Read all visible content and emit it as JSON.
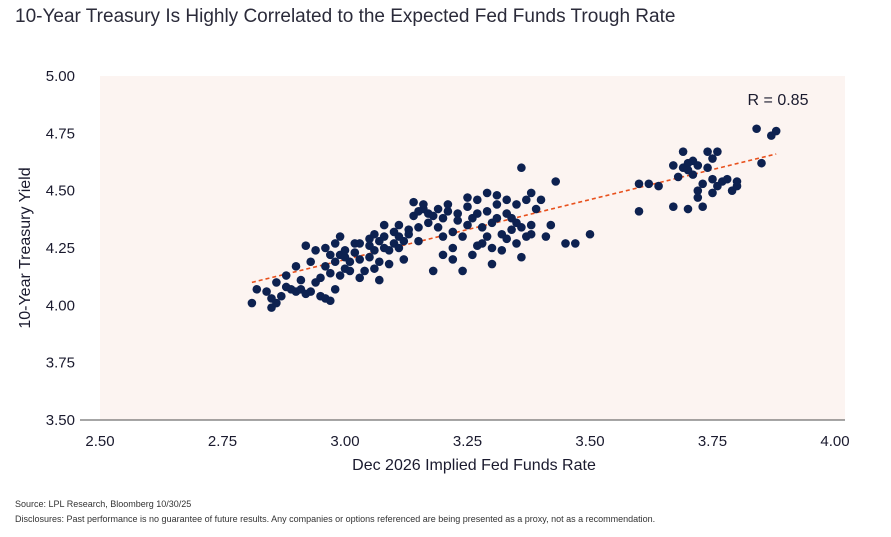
{
  "title": "10-Year Treasury Is Highly Correlated to the Expected Fed Funds Trough Rate",
  "source": "Source: LPL Research, Bloomberg 10/30/25",
  "disclosure": "Disclosures: Past performance is no guarantee of future results. Any companies or options referenced are being presented as a proxy, not as a recommendation.",
  "colors": {
    "point": "#0d2150",
    "trend": "#e8501c",
    "plot_bg": "#fcf4f1",
    "axis": "#4d4d4d"
  },
  "chart_data": {
    "type": "scatter",
    "xlabel": "Dec 2026 Implied Fed Funds Rate",
    "ylabel": "10-Year Treasury Yield",
    "xlim": [
      2.5,
      4.0
    ],
    "ylim": [
      3.5,
      5.0
    ],
    "x_ticks": [
      "2.50",
      "2.75",
      "3.00",
      "3.25",
      "3.50",
      "3.75",
      "4.00"
    ],
    "y_ticks": [
      "3.50",
      "3.75",
      "4.00",
      "4.25",
      "4.50",
      "4.75",
      "5.00"
    ],
    "annotation": "R = 0.85",
    "trendline": {
      "x": [
        2.81,
        3.88
      ],
      "y": [
        4.1,
        4.66
      ]
    },
    "points": [
      [
        2.81,
        4.01
      ],
      [
        2.82,
        4.07
      ],
      [
        2.84,
        4.06
      ],
      [
        2.85,
        3.99
      ],
      [
        2.85,
        4.03
      ],
      [
        2.86,
        4.01
      ],
      [
        2.86,
        4.1
      ],
      [
        2.87,
        4.04
      ],
      [
        2.88,
        4.08
      ],
      [
        2.89,
        4.07
      ],
      [
        2.9,
        4.06
      ],
      [
        2.91,
        4.07
      ],
      [
        2.91,
        4.11
      ],
      [
        2.92,
        4.05
      ],
      [
        2.92,
        4.26
      ],
      [
        2.93,
        4.19
      ],
      [
        2.94,
        4.1
      ],
      [
        2.94,
        4.24
      ],
      [
        2.95,
        4.04
      ],
      [
        2.95,
        4.12
      ],
      [
        2.96,
        4.03
      ],
      [
        2.96,
        4.17
      ],
      [
        2.96,
        4.25
      ],
      [
        2.97,
        4.02
      ],
      [
        2.97,
        4.14
      ],
      [
        2.98,
        4.07
      ],
      [
        2.98,
        4.19
      ],
      [
        2.98,
        4.27
      ],
      [
        2.99,
        4.13
      ],
      [
        2.99,
        4.22
      ],
      [
        2.99,
        4.3
      ],
      [
        3.0,
        4.16
      ],
      [
        3.0,
        4.24
      ],
      [
        3.01,
        4.15
      ],
      [
        3.01,
        4.19
      ],
      [
        3.02,
        4.23
      ],
      [
        3.02,
        4.27
      ],
      [
        3.03,
        4.12
      ],
      [
        3.03,
        4.2
      ],
      [
        3.04,
        4.15
      ],
      [
        3.05,
        4.21
      ],
      [
        3.05,
        4.26
      ],
      [
        3.05,
        4.29
      ],
      [
        3.06,
        4.16
      ],
      [
        3.06,
        4.24
      ],
      [
        3.06,
        4.31
      ],
      [
        3.07,
        4.11
      ],
      [
        3.07,
        4.19
      ],
      [
        3.07,
        4.28
      ],
      [
        3.08,
        4.25
      ],
      [
        3.08,
        4.3
      ],
      [
        3.09,
        4.18
      ],
      [
        3.09,
        4.24
      ],
      [
        3.1,
        4.27
      ],
      [
        3.1,
        4.32
      ],
      [
        3.11,
        4.3
      ],
      [
        3.11,
        4.35
      ],
      [
        3.12,
        4.2
      ],
      [
        3.12,
        4.28
      ],
      [
        3.13,
        4.31
      ],
      [
        3.13,
        4.33
      ],
      [
        3.14,
        4.39
      ],
      [
        3.14,
        4.45
      ],
      [
        3.15,
        4.34
      ],
      [
        3.15,
        4.41
      ],
      [
        3.16,
        4.42
      ],
      [
        3.16,
        4.44
      ],
      [
        3.17,
        4.36
      ],
      [
        3.17,
        4.4
      ],
      [
        3.18,
        4.39
      ],
      [
        3.19,
        4.34
      ],
      [
        3.19,
        4.42
      ],
      [
        3.2,
        4.3
      ],
      [
        3.2,
        4.38
      ],
      [
        3.21,
        4.41
      ],
      [
        3.21,
        4.44
      ],
      [
        3.22,
        4.2
      ],
      [
        3.22,
        4.32
      ],
      [
        3.23,
        4.4
      ],
      [
        3.23,
        4.37
      ],
      [
        3.24,
        4.15
      ],
      [
        3.24,
        4.3
      ],
      [
        3.25,
        4.35
      ],
      [
        3.25,
        4.43
      ],
      [
        3.26,
        4.22
      ],
      [
        3.26,
        4.38
      ],
      [
        3.27,
        4.4
      ],
      [
        3.27,
        4.46
      ],
      [
        3.28,
        4.27
      ],
      [
        3.28,
        4.34
      ],
      [
        3.29,
        4.41
      ],
      [
        3.29,
        4.49
      ],
      [
        3.3,
        4.25
      ],
      [
        3.3,
        4.36
      ],
      [
        3.31,
        4.44
      ],
      [
        3.31,
        4.48
      ],
      [
        3.32,
        4.24
      ],
      [
        3.32,
        4.31
      ],
      [
        3.33,
        4.4
      ],
      [
        3.33,
        4.46
      ],
      [
        3.34,
        4.33
      ],
      [
        3.34,
        4.38
      ],
      [
        3.35,
        4.27
      ],
      [
        3.35,
        4.44
      ],
      [
        3.36,
        4.21
      ],
      [
        3.36,
        4.34
      ],
      [
        3.36,
        4.6
      ],
      [
        3.37,
        4.3
      ],
      [
        3.37,
        4.46
      ],
      [
        3.38,
        4.35
      ],
      [
        3.38,
        4.49
      ],
      [
        3.39,
        4.42
      ],
      [
        3.4,
        4.46
      ],
      [
        3.41,
        4.3
      ],
      [
        3.42,
        4.35
      ],
      [
        3.43,
        4.54
      ],
      [
        3.45,
        4.27
      ],
      [
        3.47,
        4.27
      ],
      [
        3.5,
        4.31
      ],
      [
        3.3,
        4.18
      ],
      [
        3.22,
        4.25
      ],
      [
        3.18,
        4.15
      ],
      [
        3.27,
        4.26
      ],
      [
        3.33,
        4.29
      ],
      [
        3.35,
        4.36
      ],
      [
        3.38,
        4.31
      ],
      [
        3.31,
        4.38
      ],
      [
        3.25,
        4.47
      ],
      [
        3.29,
        4.3
      ],
      [
        3.2,
        4.22
      ],
      [
        3.15,
        4.28
      ],
      [
        3.11,
        4.25
      ],
      [
        3.08,
        4.35
      ],
      [
        3.03,
        4.27
      ],
      [
        3.0,
        4.21
      ],
      [
        2.97,
        4.22
      ],
      [
        2.93,
        4.06
      ],
      [
        2.9,
        4.17
      ],
      [
        2.88,
        4.13
      ],
      [
        3.6,
        4.53
      ],
      [
        3.6,
        4.41
      ],
      [
        3.62,
        4.53
      ],
      [
        3.64,
        4.52
      ],
      [
        3.67,
        4.61
      ],
      [
        3.67,
        4.43
      ],
      [
        3.68,
        4.56
      ],
      [
        3.69,
        4.6
      ],
      [
        3.69,
        4.67
      ],
      [
        3.7,
        4.62
      ],
      [
        3.7,
        4.59
      ],
      [
        3.7,
        4.42
      ],
      [
        3.71,
        4.63
      ],
      [
        3.71,
        4.57
      ],
      [
        3.72,
        4.61
      ],
      [
        3.72,
        4.5
      ],
      [
        3.72,
        4.47
      ],
      [
        3.73,
        4.43
      ],
      [
        3.73,
        4.53
      ],
      [
        3.74,
        4.67
      ],
      [
        3.74,
        4.6
      ],
      [
        3.75,
        4.55
      ],
      [
        3.75,
        4.49
      ],
      [
        3.75,
        4.64
      ],
      [
        3.76,
        4.67
      ],
      [
        3.76,
        4.52
      ],
      [
        3.77,
        4.54
      ],
      [
        3.78,
        4.55
      ],
      [
        3.79,
        4.5
      ],
      [
        3.8,
        4.52
      ],
      [
        3.8,
        4.54
      ],
      [
        3.84,
        4.77
      ],
      [
        3.85,
        4.62
      ],
      [
        3.87,
        4.74
      ],
      [
        3.88,
        4.76
      ]
    ]
  }
}
